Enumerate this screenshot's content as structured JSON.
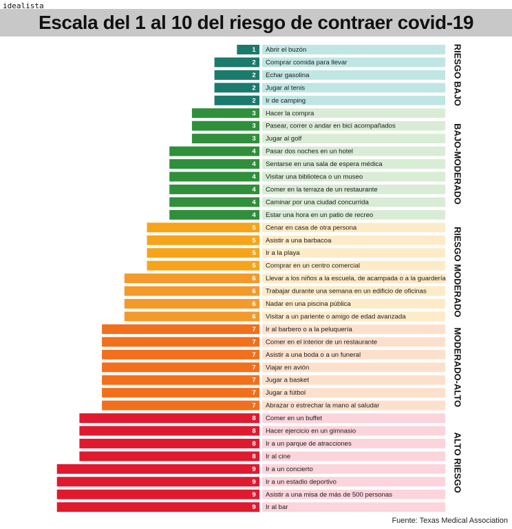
{
  "header": {
    "brand": "idealista",
    "title": "Escala del 1 al 10 del riesgo de contraer covid-19"
  },
  "footer": {
    "source": "Fuente: Texas Medical Association"
  },
  "colors": {
    "score_1_2": "#1a7a6c",
    "score_3_4": "#2f8f3a",
    "score_5": "#f6a41a",
    "score_6": "#f39a2a",
    "score_7": "#f26f1c",
    "score_8_9": "#e0192f"
  },
  "chart_data": {
    "type": "bar",
    "orientation": "horizontal",
    "xlim": [
      0,
      9
    ],
    "grid": false,
    "categories": [
      "Abrir el buzón",
      "Comprar comida para llevar",
      "Echar gasolina",
      "Jugar al tenis",
      "Ir de camping",
      "Hacer la compra",
      "Pasear, correr o andar en bici acompañados",
      "Jugar al golf",
      "Pasar dos noches en un hotel",
      "Sentarse en una sala de espera médica",
      "Visitar una biblioteca o un museo",
      "Comer en la terraza de un restaurante",
      "Caminar por una ciudad concurrida",
      "Estar una hora en un patio de recreo",
      "Cenar en casa de otra persona",
      "Asistir a una barbacoa",
      "Ir a la playa",
      "Comprar en un centro comercial",
      "Llevar a los niños a la escuela, de acampada o a la guardería",
      "Trabajar durante una semana en un edificio de oficinas",
      "Nadar en una piscina pública",
      "Visitar a un pariente o amigo de edad avanzada",
      "Ir al barbero o a la peluquería",
      "Comer en el interior de un restaurante",
      "Asistir a una boda o a un funeral",
      "Viajar en avión",
      "Jugar a basket",
      "Jugar a fútbol",
      "Abrazar o estrechar la mano al saludar",
      "Comer en un buffet",
      "Hacer ejercicio en un gimnasio",
      "Ir a un parque de atracciones",
      "Ir al cine",
      "Ir a un concierto",
      "Ir a un estadio deportivo",
      "Asistir a una misa de más de 500 personas",
      "Ir al bar"
    ],
    "values": [
      1,
      2,
      2,
      2,
      2,
      3,
      3,
      3,
      4,
      4,
      4,
      4,
      4,
      4,
      5,
      5,
      5,
      5,
      6,
      6,
      6,
      6,
      7,
      7,
      7,
      7,
      7,
      7,
      7,
      8,
      8,
      8,
      8,
      9,
      9,
      9,
      9
    ],
    "groups": [
      {
        "label": "RIESGO BAJO",
        "first": 0,
        "last": 4,
        "band_color": "#bfe6e3"
      },
      {
        "label": "BAJO-MODERADO",
        "first": 5,
        "last": 13,
        "band_color": "#d9ecd5"
      },
      {
        "label": "RIESGO MODERADO",
        "first": 14,
        "last": 21,
        "band_color": "#fdebc8"
      },
      {
        "label": "MODERADO-ALTO",
        "first": 22,
        "last": 28,
        "band_color": "#fde0cc"
      },
      {
        "label": "ALTO RIESGO",
        "first": 29,
        "last": 36,
        "band_color": "#fbd4dc"
      }
    ]
  }
}
